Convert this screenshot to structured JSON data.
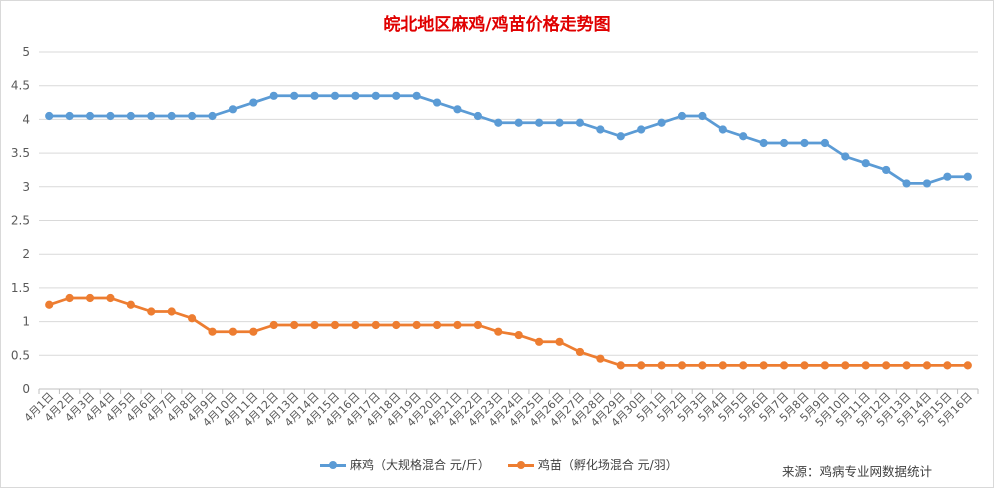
{
  "colors": {
    "series1": "#5b9bd5",
    "series2": "#ed7d31",
    "title": "#e00000",
    "grid": "#d9d9d9"
  },
  "source_note": "来源：鸡病专业网数据统计",
  "chart_data": {
    "type": "line",
    "title": "皖北地区麻鸡/鸡苗价格走势图",
    "ylim": [
      0,
      5
    ],
    "yticks": [
      "0",
      "0.5",
      "1",
      "1.5",
      "2",
      "2.5",
      "3",
      "3.5",
      "4",
      "4.5",
      "5"
    ],
    "grid": true,
    "legend_position": "bottom",
    "categories": [
      "4月1日",
      "4月2日",
      "4月3日",
      "4月4日",
      "4月5日",
      "4月6日",
      "4月7日",
      "4月8日",
      "4月9日",
      "4月10日",
      "4月11日",
      "4月12日",
      "4月13日",
      "4月14日",
      "4月15日",
      "4月16日",
      "4月17日",
      "4月18日",
      "4月19日",
      "4月20日",
      "4月21日",
      "4月22日",
      "4月23日",
      "4月24日",
      "4月25日",
      "4月26日",
      "4月27日",
      "4月28日",
      "4月29日",
      "4月30日",
      "5月1日",
      "5月2日",
      "5月3日",
      "5月4日",
      "5月5日",
      "5月6日",
      "5月7日",
      "5月8日",
      "5月9日",
      "5月10日",
      "5月11日",
      "5月12日",
      "5月13日",
      "5月14日",
      "5月15日",
      "5月16日"
    ],
    "series": [
      {
        "name": "麻鸡（大规格混合 元/斤）",
        "values": [
          4.05,
          4.05,
          4.05,
          4.05,
          4.05,
          4.05,
          4.05,
          4.05,
          4.05,
          4.15,
          4.25,
          4.35,
          4.35,
          4.35,
          4.35,
          4.35,
          4.35,
          4.35,
          4.35,
          4.25,
          4.15,
          4.05,
          3.95,
          3.95,
          3.95,
          3.95,
          3.95,
          3.85,
          3.75,
          3.85,
          3.95,
          4.05,
          4.05,
          3.85,
          3.75,
          3.65,
          3.65,
          3.65,
          3.65,
          3.45,
          3.35,
          3.25,
          3.05,
          3.05,
          3.15,
          3.15
        ]
      },
      {
        "name": "鸡苗（孵化场混合 元/羽）",
        "values": [
          1.25,
          1.35,
          1.35,
          1.35,
          1.25,
          1.15,
          1.15,
          1.05,
          0.85,
          0.85,
          0.85,
          0.95,
          0.95,
          0.95,
          0.95,
          0.95,
          0.95,
          0.95,
          0.95,
          0.95,
          0.95,
          0.95,
          0.85,
          0.8,
          0.7,
          0.7,
          0.55,
          0.45,
          0.35,
          0.35,
          0.35,
          0.35,
          0.35,
          0.35,
          0.35,
          0.35,
          0.35,
          0.35,
          0.35,
          0.35,
          0.35,
          0.35,
          0.35,
          0.35,
          0.35,
          0.35
        ]
      }
    ]
  }
}
